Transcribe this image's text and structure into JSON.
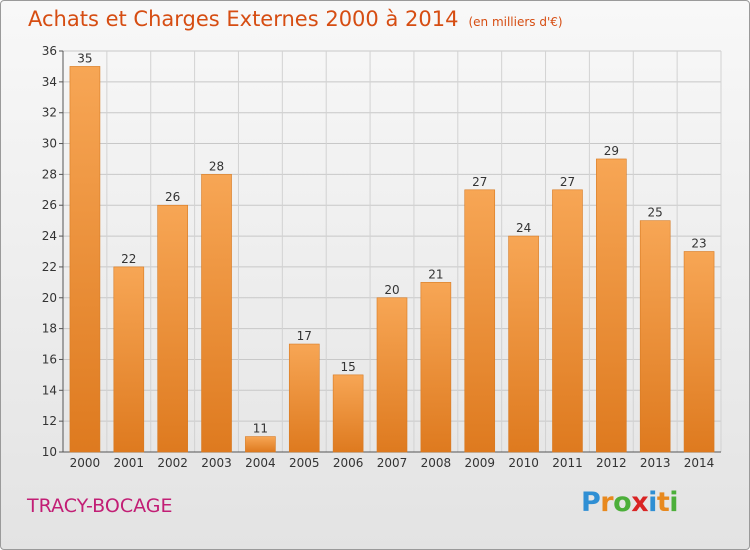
{
  "header": {
    "title": "Achats et Charges Externes 2000 à 2014",
    "unit": "(en milliers d'€)"
  },
  "footer": {
    "location": "TRACY-BOCAGE"
  },
  "logo": {
    "text": "Proxiti",
    "letters": [
      {
        "ch": "P",
        "color": "#2f8fd4"
      },
      {
        "ch": "r",
        "color": "#e8891e"
      },
      {
        "ch": "o",
        "color": "#4caf3a"
      },
      {
        "ch": "x",
        "color": "#d92424"
      },
      {
        "ch": "i",
        "color": "#2f8fd4"
      },
      {
        "ch": "t",
        "color": "#e8891e"
      },
      {
        "ch": "i",
        "color": "#4caf3a"
      }
    ]
  },
  "colors": {
    "title": "#d64d12",
    "location": "#c21e75",
    "bar_light": "#f7a655",
    "bar_dark": "#de7a1f"
  },
  "chart_data": {
    "type": "bar",
    "categories": [
      "2000",
      "2001",
      "2002",
      "2003",
      "2004",
      "2005",
      "2006",
      "2007",
      "2008",
      "2009",
      "2010",
      "2011",
      "2012",
      "2013",
      "2014"
    ],
    "values": [
      35,
      22,
      26,
      28,
      11,
      17,
      15,
      20,
      21,
      27,
      24,
      27,
      29,
      25,
      23
    ],
    "ylim": [
      10,
      36
    ],
    "yticks": [
      10,
      12,
      14,
      16,
      18,
      20,
      22,
      24,
      26,
      28,
      30,
      32,
      34,
      36
    ],
    "grid": true,
    "data_labels": true
  }
}
